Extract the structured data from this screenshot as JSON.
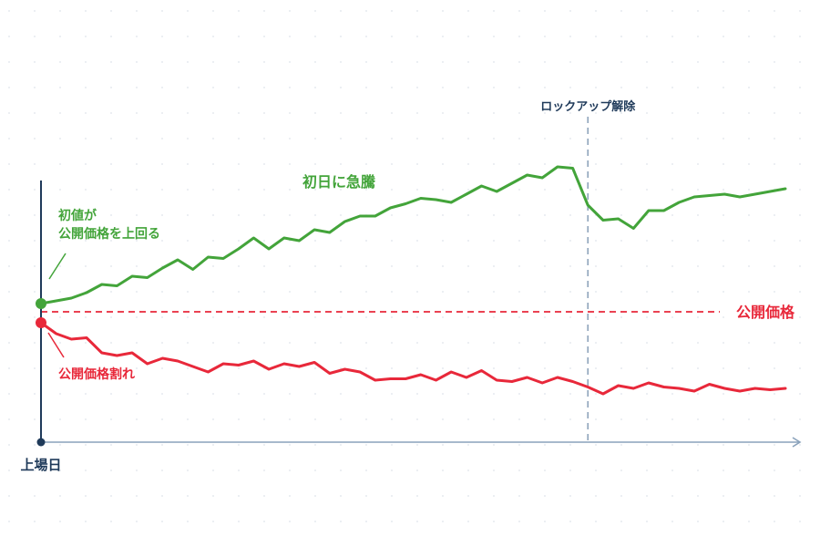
{
  "colors": {
    "green": "#43a43a",
    "red": "#e8283a",
    "navy": "#1f3a5a",
    "axis": "#8aa2bb",
    "dots": "#dfe4ea",
    "lockup": "#8ea3bb"
  },
  "chart_data": {
    "type": "line",
    "title": "",
    "xlabel": "上場日",
    "ylabel": "",
    "grid": true,
    "x": [
      0,
      1,
      2,
      3,
      4,
      5,
      6,
      7,
      8,
      9,
      10,
      11,
      12,
      13,
      14,
      15,
      16,
      17,
      18,
      19,
      20,
      21,
      22,
      23,
      24,
      25,
      26,
      27,
      28,
      29,
      30,
      31,
      32,
      33,
      34,
      35,
      36,
      37,
      38,
      39,
      40,
      41,
      42,
      43,
      44,
      45,
      46,
      47,
      48,
      49
    ],
    "xlim": [
      0,
      50
    ],
    "ylim": [
      0,
      100
    ],
    "ipo_price": 46,
    "ipo_price_label": "公開価格",
    "lockup_index": 36,
    "lockup_label": "ロックアップ解除",
    "series": [
      {
        "name": "初値が公開価格を上回る",
        "color": "#43a43a",
        "values": [
          49,
          50,
          51,
          53,
          56,
          55.5,
          59,
          58.5,
          62,
          65,
          61.5,
          66,
          65.5,
          69,
          73,
          69,
          73,
          72,
          76,
          75,
          79,
          81,
          81,
          84,
          85.5,
          87.5,
          87,
          86,
          89,
          92,
          90,
          93,
          96,
          95,
          99,
          98.5,
          85,
          79.5,
          80,
          76.5,
          83,
          83,
          86,
          88,
          88.5,
          89,
          88,
          89,
          90,
          91
        ],
        "annotation_top": "初日に急騰",
        "annotation_start_lines": [
          "初値が",
          "公開価格を上回る"
        ]
      },
      {
        "name": "公開価格割れ",
        "color": "#e8283a",
        "values": [
          42,
          38,
          36,
          36.5,
          31,
          30,
          31,
          27,
          29,
          28,
          26,
          24,
          27,
          26.5,
          28,
          25,
          27,
          26,
          27.5,
          23.5,
          25,
          24,
          21,
          21.5,
          21.5,
          23,
          21,
          24,
          22,
          24.5,
          21,
          20.5,
          22,
          20,
          22,
          20.5,
          18.5,
          16,
          19,
          18,
          20,
          18.5,
          18,
          17,
          19.5,
          18,
          17,
          18,
          17.5,
          18
        ],
        "annotation_start_lines": [
          "公開価格割れ"
        ]
      }
    ]
  }
}
